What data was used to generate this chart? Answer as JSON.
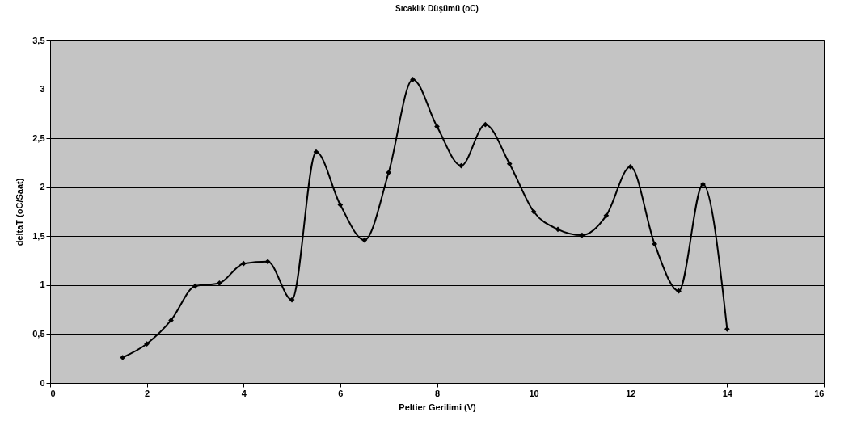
{
  "chart_data": {
    "type": "line",
    "title": "Sıcaklık Düşümü (oC)",
    "xlabel": "Peltier Gerilimi (V)",
    "ylabel": "deltaT (oC/Saat)",
    "x": [
      1.5,
      2,
      2.5,
      3,
      3.5,
      4,
      4.5,
      5,
      5.5,
      6,
      6.5,
      7,
      7.5,
      8,
      8.5,
      9,
      9.5,
      10,
      10.5,
      11,
      11.5,
      12,
      12.5,
      13,
      13.5,
      14
    ],
    "series": [
      {
        "color": "#000000",
        "values": [
          0.26,
          0.4,
          0.64,
          0.99,
          1.02,
          1.22,
          1.24,
          0.85,
          2.36,
          1.82,
          1.46,
          2.15,
          3.1,
          2.62,
          2.22,
          2.64,
          2.24,
          1.75,
          1.57,
          1.51,
          1.71,
          2.21,
          1.42,
          0.94,
          2.03,
          0.55
        ]
      }
    ],
    "xlim": [
      0,
      16
    ],
    "xticks": [
      0,
      2,
      4,
      6,
      8,
      10,
      12,
      14,
      16
    ],
    "ylim": [
      0,
      3.5
    ],
    "yticks": [
      0,
      {
        "value": 0.5,
        "label": "0,5"
      },
      1,
      {
        "value": 1.5,
        "label": "1,5"
      },
      2,
      {
        "value": 2.5,
        "label": "2,5"
      },
      3,
      {
        "value": 3.5,
        "label": "3,5"
      }
    ],
    "grid": "y",
    "marker": "diamond",
    "line_style": "solid"
  }
}
